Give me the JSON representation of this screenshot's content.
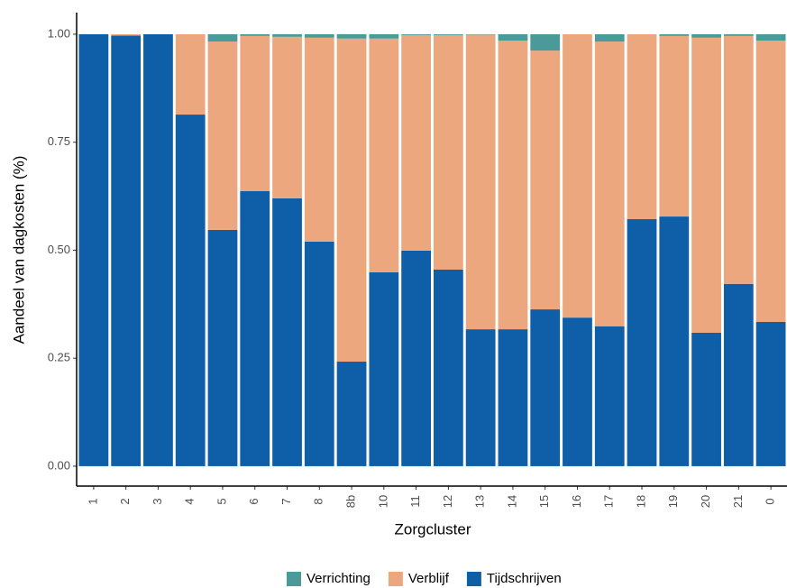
{
  "chart_data": {
    "type": "stacked_bar",
    "x_label": "Zorgcluster",
    "y_label": "Aandeel van dagkosten (%)",
    "categories": [
      "1",
      "2",
      "3",
      "4",
      "5",
      "6",
      "7",
      "8",
      "8b",
      "10",
      "11",
      "12",
      "13",
      "14",
      "15",
      "16",
      "17",
      "18",
      "19",
      "20",
      "21",
      "0"
    ],
    "series": [
      {
        "name": "Verrichting",
        "color": "#4a9a9a",
        "values": [
          0,
          0,
          0,
          0,
          0.017,
          0.004,
          0.006,
          0.008,
          0.01,
          0.01,
          0.002,
          0.002,
          0.001,
          0.015,
          0.038,
          0,
          0.017,
          0,
          0.004,
          0.008,
          0.004,
          0.015
        ]
      },
      {
        "name": "Verblijf",
        "color": "#eda77f",
        "values": [
          0,
          0.003,
          0,
          0.186,
          0.436,
          0.359,
          0.374,
          0.472,
          0.748,
          0.541,
          0.499,
          0.543,
          0.682,
          0.668,
          0.599,
          0.656,
          0.659,
          0.428,
          0.418,
          0.683,
          0.574,
          0.651
        ]
      },
      {
        "name": "Tijdschrijven",
        "color": "#0f5fa8",
        "values": [
          1.0,
          0.997,
          1.0,
          0.814,
          0.547,
          0.637,
          0.62,
          0.52,
          0.242,
          0.449,
          0.499,
          0.455,
          0.317,
          0.317,
          0.363,
          0.344,
          0.324,
          0.572,
          0.578,
          0.309,
          0.422,
          0.334
        ]
      }
    ],
    "stack_order": "reverse",
    "ylim": [
      -0.044,
      1.05
    ],
    "yticks": [
      {
        "value": 0,
        "label": "0.00"
      },
      {
        "value": 0.25,
        "label": "0.25"
      },
      {
        "value": 0.5,
        "label": "0.50"
      },
      {
        "value": 0.75,
        "label": "0.75"
      },
      {
        "value": 1,
        "label": "1.00"
      }
    ],
    "legend": "bottom"
  }
}
